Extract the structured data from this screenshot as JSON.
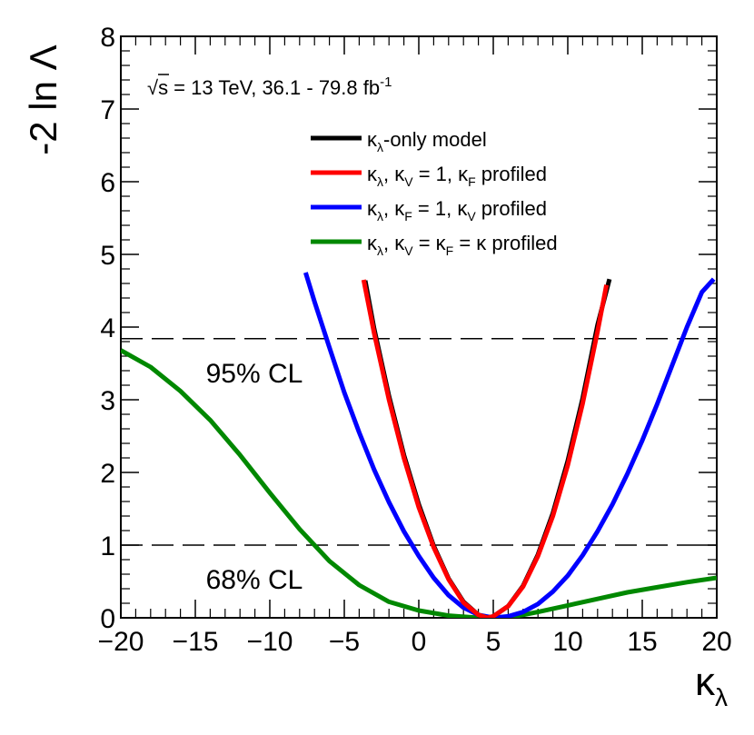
{
  "chart_data": {
    "type": "line",
    "title": "",
    "energy_label": "√s = 13 TeV, 36.1 - 79.8 fb",
    "energy_label_sup": "-1",
    "xlabel": "κ",
    "xlabel_sub": "λ",
    "ylabel": "-2 ln Λ",
    "xlim": [
      -20,
      20
    ],
    "ylim": [
      0,
      8
    ],
    "x_ticks": [
      {
        "value": -20,
        "label": "−20"
      },
      {
        "value": -15,
        "label": "−15"
      },
      {
        "value": -10,
        "label": "−10"
      },
      {
        "value": -5,
        "label": "−5"
      },
      {
        "value": 0,
        "label": "0"
      },
      {
        "value": 5,
        "label": "5"
      },
      {
        "value": 10,
        "label": "10"
      },
      {
        "value": 15,
        "label": "15"
      },
      {
        "value": 20,
        "label": "20"
      }
    ],
    "y_ticks": [
      {
        "value": 0,
        "label": "0"
      },
      {
        "value": 1,
        "label": "1"
      },
      {
        "value": 2,
        "label": "2"
      },
      {
        "value": 3,
        "label": "3"
      },
      {
        "value": 4,
        "label": "4"
      },
      {
        "value": 5,
        "label": "5"
      },
      {
        "value": 6,
        "label": "6"
      },
      {
        "value": 7,
        "label": "7"
      },
      {
        "value": 8,
        "label": "8"
      }
    ],
    "reference_lines": [
      {
        "y": 3.84,
        "label": "95% CL"
      },
      {
        "y": 1.0,
        "label": "68% CL"
      }
    ],
    "legend": [
      {
        "series": "kl_only",
        "color": "#000000",
        "parts": [
          "κ",
          "λ",
          "-only model"
        ]
      },
      {
        "series": "kv_fixed",
        "color": "#ff0000",
        "parts": [
          "κ",
          "λ",
          ", κ",
          "V",
          " = 1, κ",
          "F",
          " profiled"
        ]
      },
      {
        "series": "kf_fixed",
        "color": "#0000ff",
        "parts": [
          "κ",
          "λ",
          ", κ",
          "F",
          " = 1, κ",
          "V",
          " profiled"
        ]
      },
      {
        "series": "kv_eq_kf",
        "color": "#008800",
        "parts": [
          "κ",
          "λ",
          ", κ",
          "V",
          " = κ",
          "F",
          " = κ profiled"
        ]
      }
    ],
    "series": [
      {
        "name": "kl_only",
        "color": "#000000",
        "x": [
          -3.6,
          -3.0,
          -2.0,
          -1.0,
          0.0,
          1.0,
          2.0,
          3.0,
          4.0,
          4.6,
          5.0,
          6.0,
          7.0,
          8.0,
          9.0,
          10.0,
          11.0,
          12.0,
          12.8
        ],
        "y": [
          4.64,
          3.98,
          3.05,
          2.24,
          1.56,
          0.99,
          0.54,
          0.22,
          0.04,
          0.0,
          0.02,
          0.16,
          0.44,
          0.87,
          1.44,
          2.16,
          3.02,
          4.03,
          4.66
        ]
      },
      {
        "name": "kv_fixed",
        "color": "#ff0000",
        "x": [
          -3.7,
          -3.0,
          -2.0,
          -1.0,
          0.0,
          1.0,
          2.0,
          3.0,
          4.0,
          4.6,
          5.0,
          6.0,
          7.0,
          8.0,
          9.0,
          10.0,
          11.0,
          12.0,
          12.6
        ],
        "y": [
          4.65,
          3.92,
          3.0,
          2.2,
          1.52,
          0.97,
          0.53,
          0.21,
          0.04,
          0.0,
          0.02,
          0.16,
          0.43,
          0.85,
          1.4,
          2.1,
          2.95,
          3.94,
          4.58
        ]
      },
      {
        "name": "kf_fixed",
        "color": "#0000ff",
        "x": [
          -7.6,
          -7.0,
          -6.0,
          -5.0,
          -4.0,
          -3.0,
          -2.0,
          -1.0,
          0.0,
          1.0,
          2.0,
          3.0,
          4.0,
          5.0,
          6.0,
          7.0,
          8.0,
          9.0,
          10.0,
          11.0,
          12.0,
          13.0,
          14.0,
          15.0,
          16.0,
          17.0,
          18.0,
          19.0,
          19.8
        ],
        "y": [
          4.75,
          4.35,
          3.72,
          3.1,
          2.55,
          2.04,
          1.59,
          1.19,
          0.85,
          0.55,
          0.31,
          0.14,
          0.04,
          0.0,
          0.02,
          0.08,
          0.19,
          0.36,
          0.58,
          0.86,
          1.19,
          1.56,
          1.98,
          2.44,
          2.94,
          3.47,
          4.0,
          4.48,
          4.66
        ]
      },
      {
        "name": "kv_eq_kf",
        "color": "#008800",
        "x": [
          -20.0,
          -18.0,
          -16.0,
          -14.0,
          -12.0,
          -10.0,
          -8.0,
          -6.0,
          -4.0,
          -2.0,
          0.0,
          2.0,
          4.0,
          5.0,
          6.0,
          7.0,
          8.0,
          10.0,
          12.0,
          14.0,
          16.0,
          18.0,
          20.0
        ],
        "y": [
          3.68,
          3.45,
          3.12,
          2.72,
          2.24,
          1.72,
          1.22,
          0.78,
          0.45,
          0.22,
          0.1,
          0.03,
          0.0,
          0.0,
          0.01,
          0.04,
          0.08,
          0.17,
          0.26,
          0.35,
          0.42,
          0.49,
          0.55
        ]
      }
    ]
  }
}
